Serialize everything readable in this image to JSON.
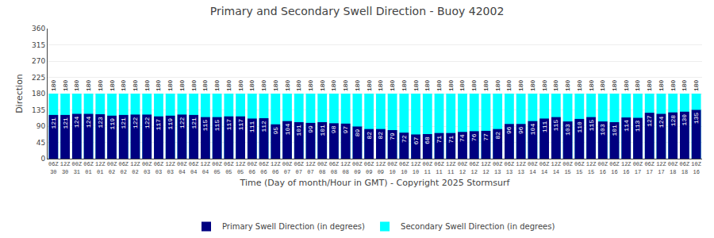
{
  "chart_data": {
    "type": "bar",
    "title": "Primary and Secondary Swell Direction - Buoy 42002",
    "xlabel": "Time (Day of month/Hour in GMT) - Copyright 2025 Stormsurf",
    "ylabel": "Direction",
    "categories": [
      "06Z\n30",
      "12Z\n30",
      "00Z\n31",
      "06Z\n01",
      "12Z\n01",
      "00Z\n02",
      "06Z\n02",
      "12Z\n02",
      "00Z\n03",
      "06Z\n03",
      "12Z\n03",
      "00Z\n04",
      "06Z\n04",
      "12Z\n04",
      "00Z\n05",
      "06Z\n05",
      "12Z\n05",
      "00Z\n06",
      "06Z\n06",
      "12Z\n06",
      "00Z\n07",
      "06Z\n07",
      "12Z\n07",
      "00Z\n08",
      "06Z\n08",
      "12Z\n08",
      "00Z\n09",
      "06Z\n09",
      "12Z\n09",
      "00Z\n10",
      "06Z\n10",
      "12Z\n10",
      "00Z\n11",
      "06Z\n11",
      "12Z\n11",
      "00Z\n12",
      "06Z\n12",
      "12Z\n12",
      "00Z\n13",
      "06Z\n13",
      "12Z\n13",
      "00Z\n14",
      "06Z\n14",
      "12Z\n14",
      "00Z\n15",
      "06Z\n15",
      "12Z\n15",
      "00Z\n16",
      "06Z\n16",
      "12Z\n16",
      "00Z\n17",
      "06Z\n17",
      "12Z\n17",
      "00Z\n18",
      "06Z\n18",
      "10Z\n16"
    ],
    "series": [
      {
        "name": "Secondary Swell Direction (in degrees)",
        "color": "#00FFFF",
        "values": [
          180,
          180,
          180,
          180,
          180,
          180,
          180,
          180,
          180,
          180,
          180,
          180,
          180,
          180,
          180,
          180,
          180,
          180,
          180,
          180,
          180,
          180,
          180,
          180,
          180,
          180,
          180,
          180,
          180,
          180,
          180,
          180,
          180,
          180,
          180,
          180,
          180,
          180,
          180,
          180,
          180,
          180,
          180,
          180,
          180,
          180,
          180,
          180,
          180,
          180,
          180,
          180,
          180,
          180,
          180,
          180
        ]
      },
      {
        "name": "Primary Swell Direction (in degrees)",
        "color": "#000080",
        "values": [
          121,
          121,
          124,
          124,
          123,
          119,
          121,
          122,
          122,
          117,
          119,
          122,
          121,
          115,
          115,
          117,
          117,
          111,
          112,
          95,
          104,
          101,
          99,
          101,
          98,
          97,
          89,
          82,
          82,
          79,
          72,
          67,
          68,
          71,
          71,
          74,
          76,
          77,
          82,
          96,
          96,
          104,
          111,
          115,
          103,
          110,
          115,
          103,
          101,
          114,
          113,
          127,
          124,
          128,
          130,
          135
        ]
      }
    ],
    "ylim": [
      0,
      360
    ],
    "yticks": [
      0,
      45,
      90,
      135,
      180,
      225,
      270,
      315,
      360
    ],
    "grid": true,
    "legend": "bottom",
    "stacked": false,
    "data_labels": true
  }
}
